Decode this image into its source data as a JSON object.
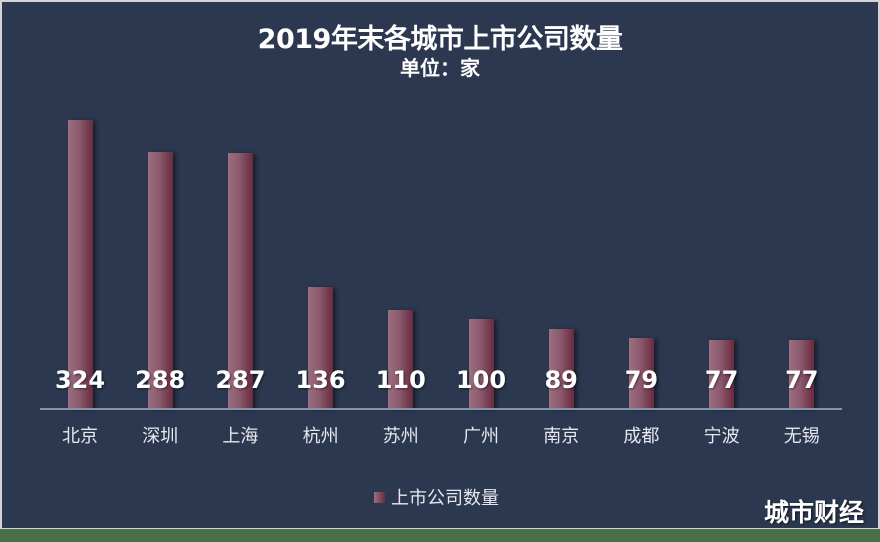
{
  "chart_data": {
    "type": "bar",
    "title": "2019年末各城市上市公司数量",
    "subtitle": "单位：家",
    "categories": [
      "北京",
      "深圳",
      "上海",
      "杭州",
      "苏州",
      "广州",
      "南京",
      "成都",
      "宁波",
      "无锡"
    ],
    "values": [
      324,
      288,
      287,
      136,
      110,
      100,
      89,
      79,
      77,
      77
    ],
    "series": [
      {
        "name": "上市公司数量",
        "values": [
          324,
          288,
          287,
          136,
          110,
          100,
          89,
          79,
          77,
          77
        ]
      }
    ],
    "xlabel": "",
    "ylabel": "",
    "ylim": [
      0,
      324
    ],
    "grid": false,
    "legend_position": "bottom",
    "data_labels": true
  },
  "header": {
    "title": "2019年末各城市上市公司数量",
    "subtitle": "单位：家"
  },
  "legend": {
    "label": "上市公司数量"
  },
  "watermark": "城市财经",
  "colors": {
    "background": "#2b3850",
    "bar_light": "#9c7080",
    "bar_dark": "#6a2a40",
    "axis": "#8a93a6",
    "outer": "#4a7049"
  },
  "labels": {
    "v0": "324",
    "v1": "288",
    "v2": "287",
    "v3": "136",
    "v4": "110",
    "v5": "100",
    "v6": "89",
    "v7": "79",
    "v8": "77",
    "v9": "77"
  }
}
